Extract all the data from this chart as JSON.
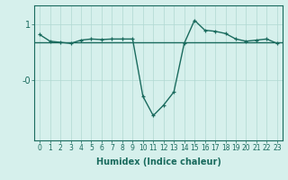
{
  "xlabel": "Humidex (Indice chaleur)",
  "background_color": "#d6f0ec",
  "line_color": "#1a6b5e",
  "x": [
    0,
    1,
    2,
    3,
    4,
    5,
    6,
    7,
    8,
    9,
    10,
    11,
    12,
    13,
    14,
    15,
    16,
    17,
    18,
    19,
    20,
    21,
    22,
    23
  ],
  "y": [
    0.82,
    0.7,
    0.68,
    0.66,
    0.72,
    0.74,
    0.73,
    0.74,
    0.74,
    0.74,
    -0.3,
    -0.65,
    -0.46,
    -0.22,
    0.66,
    1.08,
    0.9,
    0.88,
    0.84,
    0.74,
    0.7,
    0.72,
    0.74,
    0.66
  ],
  "hline_y": 0.68,
  "xlim": [
    -0.5,
    23.5
  ],
  "ylim": [
    -1.1,
    1.35
  ],
  "yticks": [
    0.0,
    1.0
  ],
  "ytick_labels": [
    "-0",
    "1"
  ],
  "xticks": [
    0,
    1,
    2,
    3,
    4,
    5,
    6,
    7,
    8,
    9,
    10,
    11,
    12,
    13,
    14,
    15,
    16,
    17,
    18,
    19,
    20,
    21,
    22,
    23
  ],
  "grid_color": "#b0d8d2",
  "fig_bg": "#d6f0ec",
  "tick_color": "#1a6b5e",
  "spine_color": "#1a6b5e"
}
